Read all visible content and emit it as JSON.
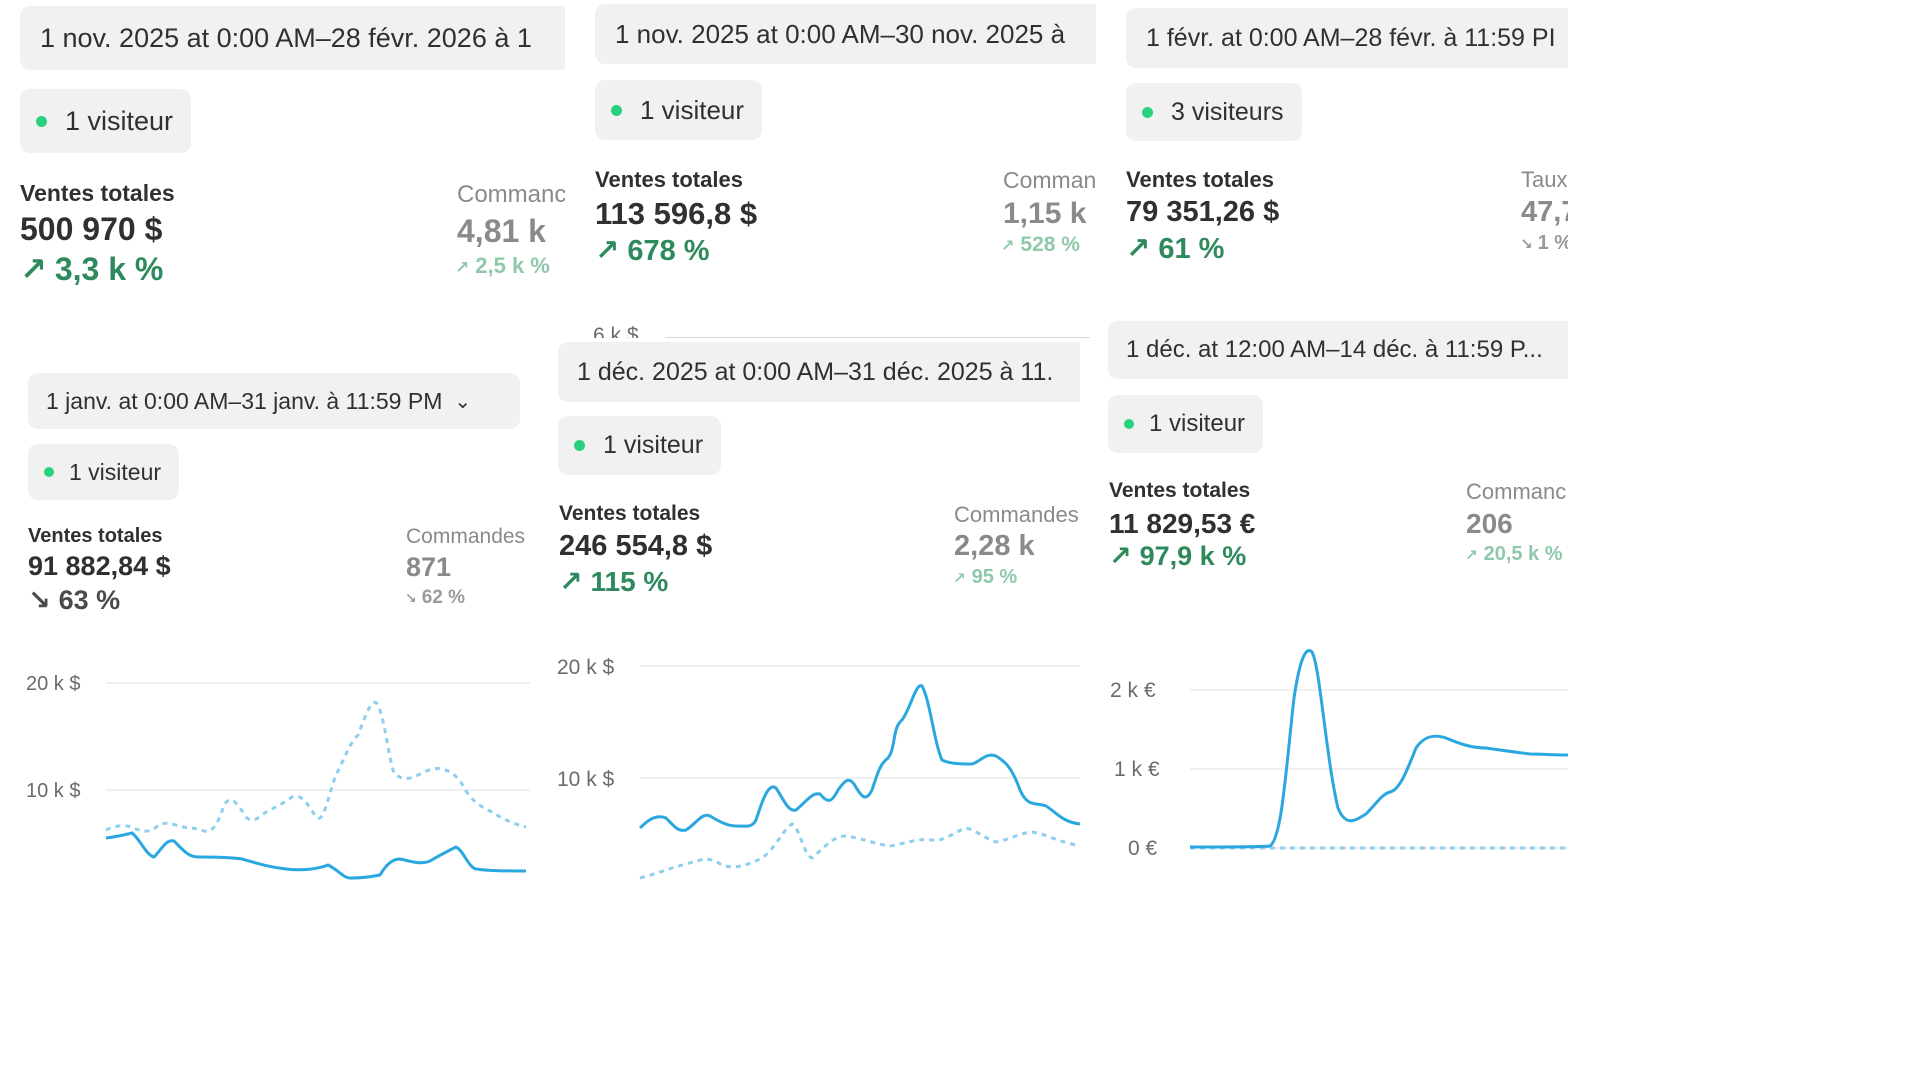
{
  "panels": [
    {
      "date_range": "1 nov. 2025 at 0:00 AM–28 févr. 2026 à 1",
      "visitors": "1 visiteur",
      "sales_label": "Ventes totales",
      "sales_value": "500 970 $",
      "sales_change": "3,3 k %",
      "sales_direction": "up",
      "orders_label": "Commanc",
      "orders_value": "4,81 k",
      "orders_change": "2,5 k %",
      "orders_direction": "up"
    },
    {
      "date_range": "1 nov. 2025 at 0:00 AM–30 nov. 2025 à",
      "visitors": "1 visiteur",
      "sales_label": "Ventes totales",
      "sales_value": "113 596,8 $",
      "sales_change": "678 %",
      "sales_direction": "up",
      "orders_label": "Comman",
      "orders_value": "1,15 k",
      "orders_change": "528 %",
      "orders_direction": "up",
      "axis_top_label": "6 k $"
    },
    {
      "date_range": "1 févr. at 0:00 AM–28 févr. à 11:59 PI",
      "visitors": "3 visiteurs",
      "sales_label": "Ventes totales",
      "sales_value": "79 351,26 $",
      "sales_change": "61 %",
      "sales_direction": "up",
      "orders_label": "Taux",
      "orders_value": "47,7",
      "orders_change": "1 %",
      "orders_direction": "down"
    },
    {
      "date_range": "1 janv. at 0:00 AM–31 janv. à 11:59 PM",
      "chevron": "chevron-down",
      "visitors": "1 visiteur",
      "sales_label": "Ventes totales",
      "sales_value": "91 882,84 $",
      "sales_change": "63 %",
      "sales_direction": "down",
      "orders_label": "Commandes",
      "orders_value": "871",
      "orders_change": "62 %",
      "orders_direction": "down",
      "axis_labels": [
        "20 k $",
        "10 k $"
      ]
    },
    {
      "date_range": "1 déc. 2025 at 0:00 AM–31 déc. 2025 à 11.",
      "visitors": "1 visiteur",
      "sales_label": "Ventes totales",
      "sales_value": "246 554,8 $",
      "sales_change": "115 %",
      "sales_direction": "up",
      "orders_label": "Commandes",
      "orders_value": "2,28 k",
      "orders_change": "95 %",
      "orders_direction": "up",
      "axis_labels": [
        "20 k $",
        "10 k $"
      ]
    },
    {
      "date_range": "1 déc. at 12:00 AM–14 déc. à 11:59 P...",
      "visitors": "1 visiteur",
      "sales_label": "Ventes totales",
      "sales_value": "11 829,53 €",
      "sales_change": "97,9 k %",
      "sales_direction": "up",
      "orders_label": "Commanc",
      "orders_value": "206",
      "orders_change": "20,5 k %",
      "orders_direction": "up",
      "axis_labels": [
        "2 k €",
        "1 k €",
        "0 €"
      ]
    }
  ],
  "colors": {
    "line_current": "#2ba7e0",
    "line_previous": "#8ecfee",
    "positive": "#2e8a5c",
    "visitor_dot": "#29d17d"
  },
  "icons": {
    "up": "arrow-up-right-icon",
    "down": "arrow-down-right-icon"
  }
}
